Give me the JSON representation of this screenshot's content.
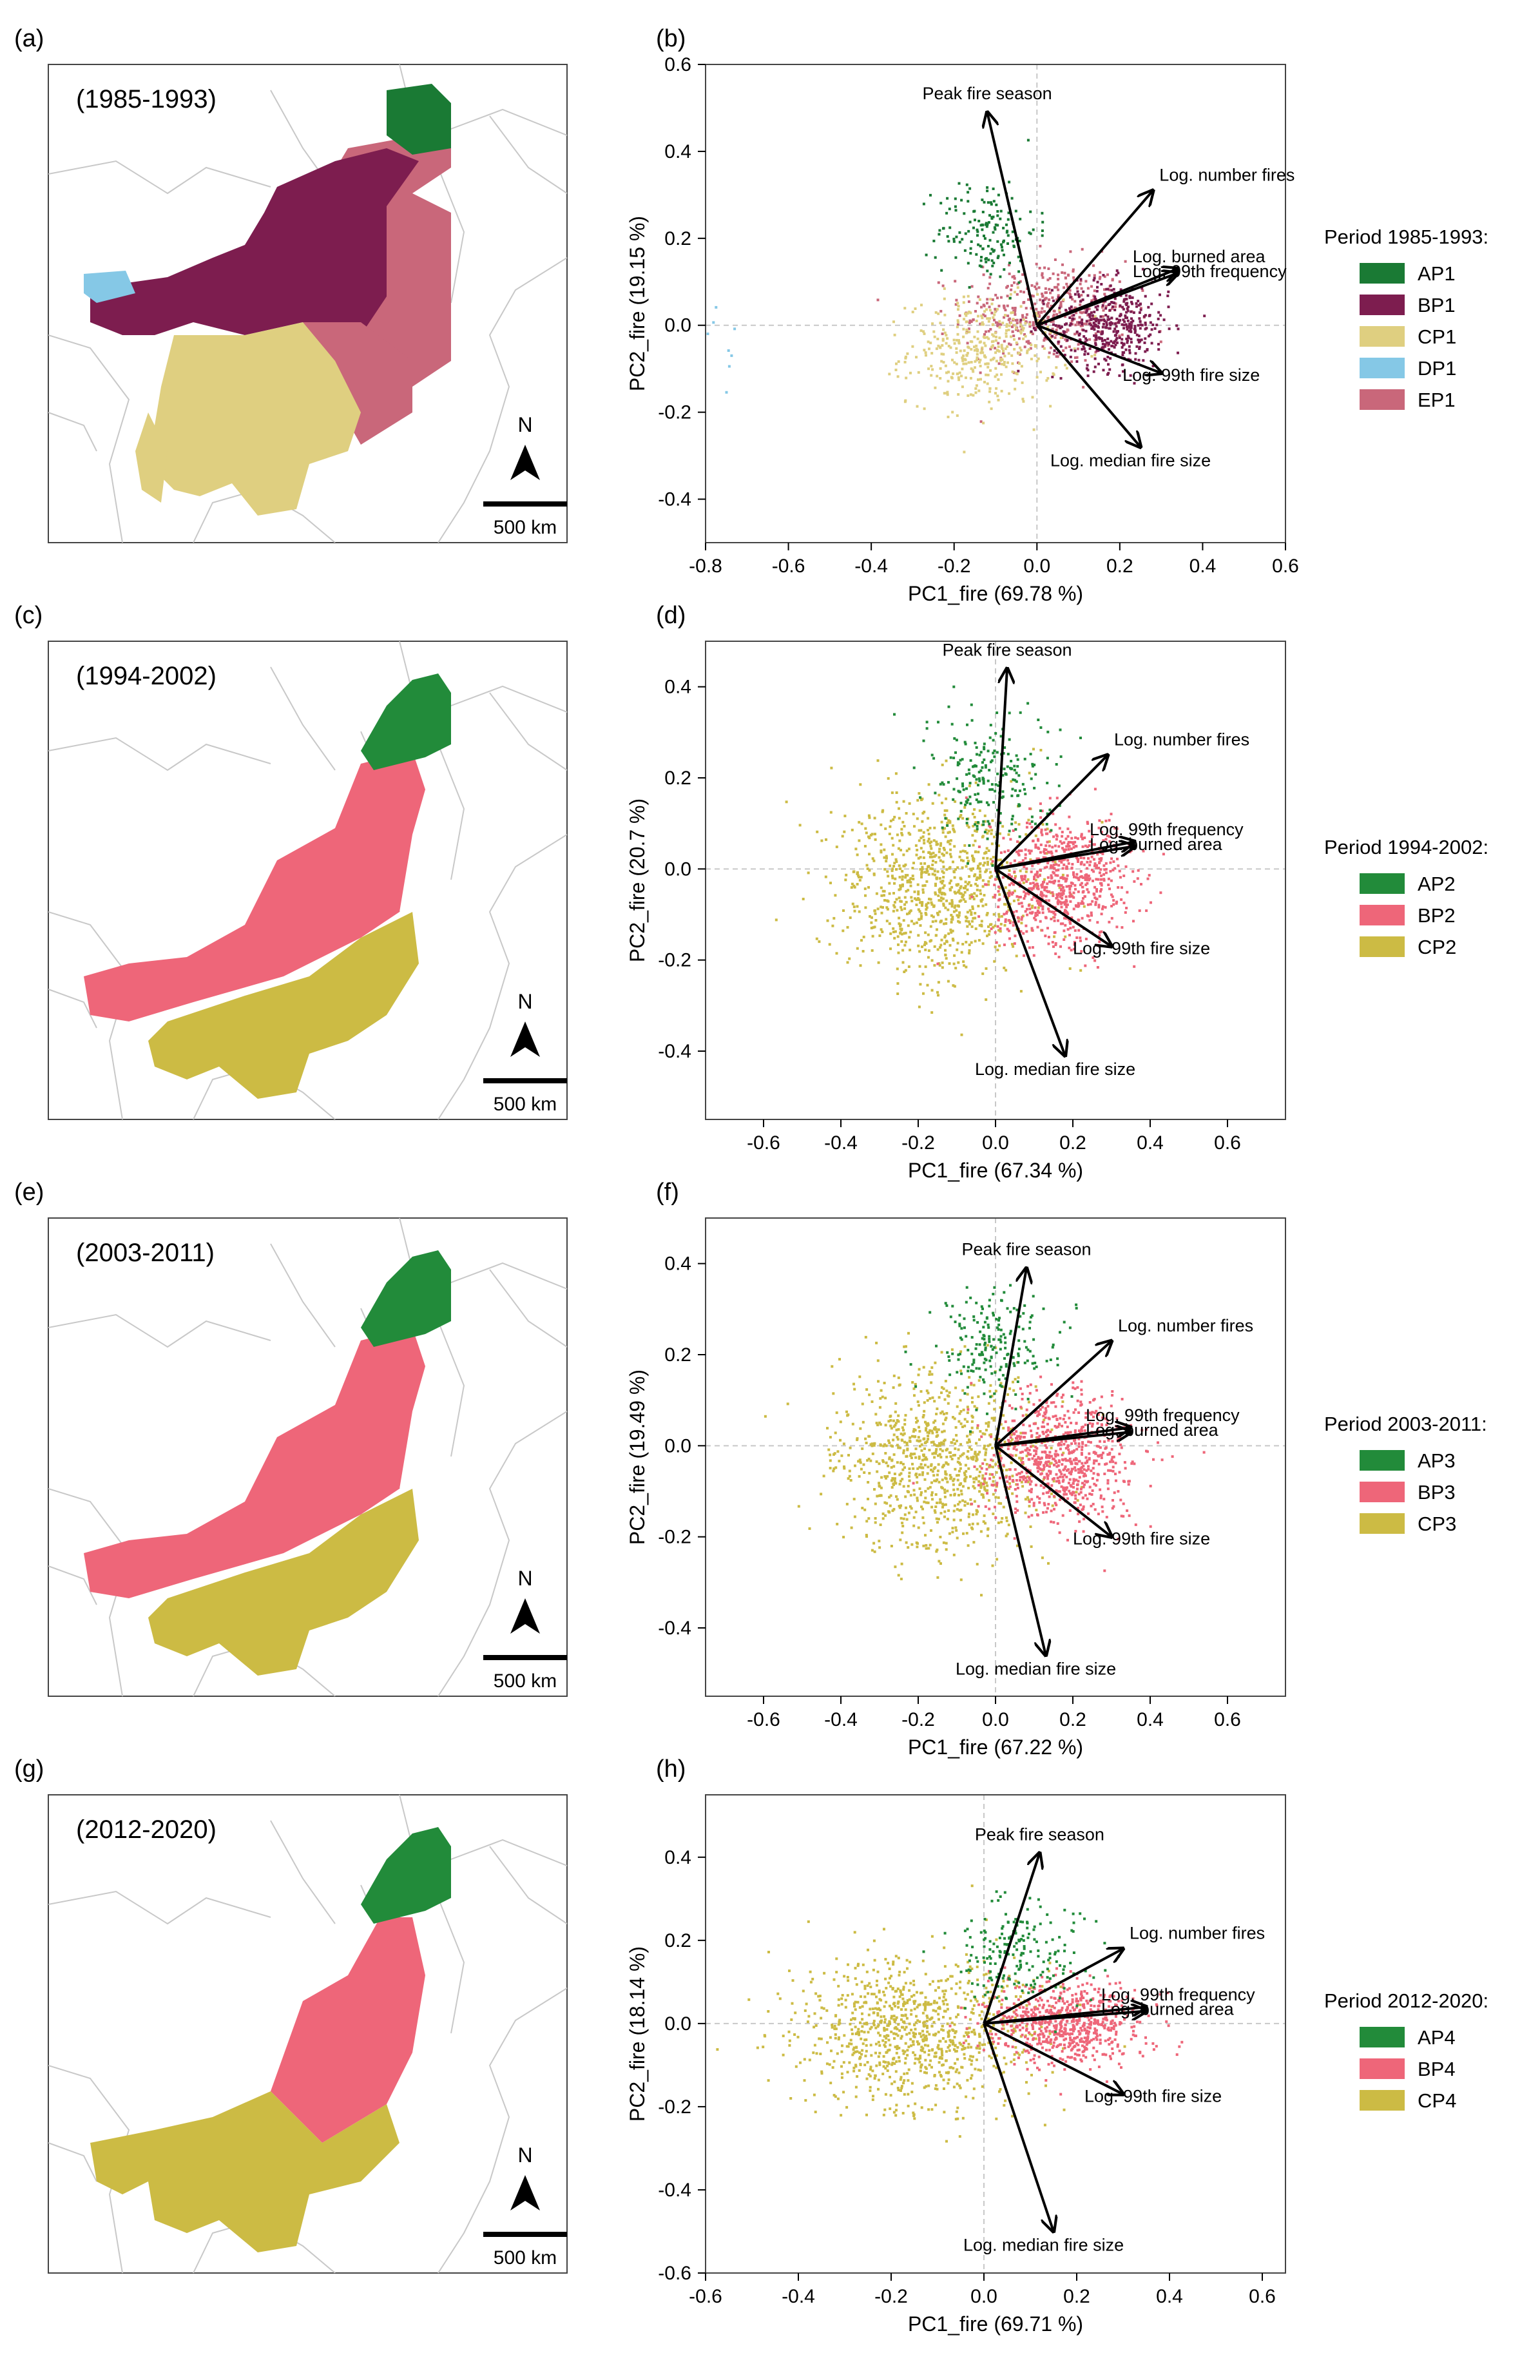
{
  "panels": [
    {
      "map_label": "(a)",
      "pca_label": "(b)",
      "period": "(1985-1993)",
      "legend_title": "Period 1985-1993:",
      "scale_label": "500 km",
      "north_label": "N"
    },
    {
      "map_label": "(c)",
      "pca_label": "(d)",
      "period": "(1994-2002)",
      "legend_title": "Period 1994-2002:",
      "scale_label": "500 km",
      "north_label": "N"
    },
    {
      "map_label": "(e)",
      "pca_label": "(f)",
      "period": "(2003-2011)",
      "legend_title": "Period 2003-2011:",
      "scale_label": "500 km",
      "north_label": "N"
    },
    {
      "map_label": "(g)",
      "pca_label": "(h)",
      "period": "(2012-2020)",
      "legend_title": "Period 2012-2020:",
      "scale_label": "500 km",
      "north_label": "N"
    }
  ],
  "colors": {
    "AP": "#1a7a34",
    "BP1": "#7d1d4f",
    "CP1": "#dfcf80",
    "DP1": "#85c8e6",
    "EP1": "#c9677a",
    "AP_late": "#228b3a",
    "BP_late": "#ee6679",
    "CP_late": "#ccbb44"
  },
  "chart_data": [
    {
      "type": "scatter",
      "xlabel": "PC1_fire (69.78 %)",
      "ylabel": "PC2_fire (19.15 %)",
      "xlim": [
        -0.8,
        0.6
      ],
      "ylim": [
        -0.5,
        0.6
      ],
      "xticks": [
        -0.8,
        -0.6,
        -0.4,
        -0.2,
        0.0,
        0.2,
        0.4,
        0.6
      ],
      "yticks": [
        -0.4,
        -0.2,
        0.0,
        0.2,
        0.4,
        0.6
      ],
      "legend": [
        {
          "name": "AP1",
          "color": "#1a7a34"
        },
        {
          "name": "BP1",
          "color": "#7d1d4f"
        },
        {
          "name": "CP1",
          "color": "#dfcf80"
        },
        {
          "name": "DP1",
          "color": "#85c8e6"
        },
        {
          "name": "EP1",
          "color": "#c9677a"
        }
      ],
      "clusters": [
        {
          "name": "EP1",
          "n": 420,
          "cx": 0.02,
          "cy": 0.03,
          "sx": 0.1,
          "sy": 0.06,
          "color": "#c9677a"
        },
        {
          "name": "CP1",
          "n": 380,
          "cx": -0.13,
          "cy": -0.06,
          "sx": 0.09,
          "sy": 0.06,
          "color": "#dfcf80"
        },
        {
          "name": "AP1",
          "n": 160,
          "cx": -0.12,
          "cy": 0.22,
          "sx": 0.06,
          "sy": 0.06,
          "color": "#1a7a34"
        },
        {
          "name": "BP1",
          "n": 420,
          "cx": 0.18,
          "cy": 0.0,
          "sx": 0.07,
          "sy": 0.05,
          "color": "#7d1d4f"
        },
        {
          "name": "DP1",
          "n": 8,
          "cx": -0.75,
          "cy": -0.05,
          "sx": 0.02,
          "sy": 0.05,
          "color": "#85c8e6"
        }
      ],
      "arrows": [
        {
          "label": "Peak fire season",
          "x": -0.12,
          "y": 0.49
        },
        {
          "label": "Log. number fires",
          "x": 0.28,
          "y": 0.31
        },
        {
          "label": "Log. burned area",
          "x": 0.34,
          "y": 0.13
        },
        {
          "label": "Log. 99th frequency",
          "x": 0.34,
          "y": 0.12
        },
        {
          "label": "Log. 99th fire size",
          "x": 0.3,
          "y": -0.11
        },
        {
          "label": "Log. median fire size",
          "x": 0.25,
          "y": -0.28
        }
      ]
    },
    {
      "type": "scatter",
      "xlabel": "PC1_fire (67.34 %)",
      "ylabel": "PC2_fire (20.7 %)",
      "xlim": [
        -0.75,
        0.75
      ],
      "ylim": [
        -0.55,
        0.5
      ],
      "xticks": [
        -0.6,
        -0.4,
        -0.2,
        0.0,
        0.2,
        0.4,
        0.6
      ],
      "yticks": [
        -0.4,
        -0.2,
        0.0,
        0.2,
        0.4
      ],
      "legend": [
        {
          "name": "AP2",
          "color": "#228b3a"
        },
        {
          "name": "BP2",
          "color": "#ee6679"
        },
        {
          "name": "CP2",
          "color": "#ccbb44"
        }
      ],
      "clusters": [
        {
          "name": "CP2",
          "n": 900,
          "cx": -0.15,
          "cy": -0.04,
          "sx": 0.13,
          "sy": 0.1,
          "color": "#ccbb44"
        },
        {
          "name": "BP2",
          "n": 750,
          "cx": 0.17,
          "cy": -0.03,
          "sx": 0.09,
          "sy": 0.07,
          "color": "#ee6679"
        },
        {
          "name": "AP2",
          "n": 220,
          "cx": -0.02,
          "cy": 0.2,
          "sx": 0.08,
          "sy": 0.07,
          "color": "#228b3a"
        }
      ],
      "arrows": [
        {
          "label": "Peak fire season",
          "x": 0.03,
          "y": 0.44
        },
        {
          "label": "Log. number fires",
          "x": 0.29,
          "y": 0.25
        },
        {
          "label": "Log. 99th frequency",
          "x": 0.36,
          "y": 0.06
        },
        {
          "label": "Log. burned area",
          "x": 0.36,
          "y": 0.05
        },
        {
          "label": "Log. 99th fire size",
          "x": 0.3,
          "y": -0.17
        },
        {
          "label": "Log. median fire size",
          "x": 0.18,
          "y": -0.41
        }
      ]
    },
    {
      "type": "scatter",
      "xlabel": "PC1_fire (67.22 %)",
      "ylabel": "PC2_fire (19.49 %)",
      "xlim": [
        -0.75,
        0.75
      ],
      "ylim": [
        -0.55,
        0.5
      ],
      "xticks": [
        -0.6,
        -0.4,
        -0.2,
        0.0,
        0.2,
        0.4,
        0.6
      ],
      "yticks": [
        -0.4,
        -0.2,
        0.0,
        0.2,
        0.4
      ],
      "legend": [
        {
          "name": "AP3",
          "color": "#228b3a"
        },
        {
          "name": "BP3",
          "color": "#ee6679"
        },
        {
          "name": "CP3",
          "color": "#ccbb44"
        }
      ],
      "clusters": [
        {
          "name": "CP3",
          "n": 900,
          "cx": -0.15,
          "cy": -0.04,
          "sx": 0.13,
          "sy": 0.1,
          "color": "#ccbb44"
        },
        {
          "name": "BP3",
          "n": 750,
          "cx": 0.17,
          "cy": -0.03,
          "sx": 0.09,
          "sy": 0.07,
          "color": "#ee6679"
        },
        {
          "name": "AP3",
          "n": 200,
          "cx": 0.0,
          "cy": 0.22,
          "sx": 0.08,
          "sy": 0.06,
          "color": "#228b3a"
        }
      ],
      "arrows": [
        {
          "label": "Peak fire season",
          "x": 0.08,
          "y": 0.39
        },
        {
          "label": "Log. number fires",
          "x": 0.3,
          "y": 0.23
        },
        {
          "label": "Log. 99th frequency",
          "x": 0.35,
          "y": 0.04
        },
        {
          "label": "Log. burned area",
          "x": 0.35,
          "y": 0.03
        },
        {
          "label": "Log. 99th fire size",
          "x": 0.3,
          "y": -0.2
        },
        {
          "label": "Log. median fire size",
          "x": 0.13,
          "y": -0.46
        }
      ]
    },
    {
      "type": "scatter",
      "xlabel": "PC1_fire (69.71 %)",
      "ylabel": "PC2_fire (18.14 %)",
      "xlim": [
        -0.6,
        0.65
      ],
      "ylim": [
        -0.6,
        0.55
      ],
      "xticks": [
        -0.6,
        -0.4,
        -0.2,
        0.0,
        0.2,
        0.4,
        0.6
      ],
      "yticks": [
        -0.6,
        -0.4,
        -0.2,
        0.0,
        0.2,
        0.4
      ],
      "legend": [
        {
          "name": "AP4",
          "color": "#228b3a"
        },
        {
          "name": "BP4",
          "color": "#ee6679"
        },
        {
          "name": "CP4",
          "color": "#ccbb44"
        }
      ],
      "clusters": [
        {
          "name": "CP4",
          "n": 950,
          "cx": -0.15,
          "cy": -0.02,
          "sx": 0.13,
          "sy": 0.09,
          "color": "#ccbb44"
        },
        {
          "name": "BP4",
          "n": 700,
          "cx": 0.18,
          "cy": 0.0,
          "sx": 0.08,
          "sy": 0.05,
          "color": "#ee6679"
        },
        {
          "name": "AP4",
          "n": 200,
          "cx": 0.07,
          "cy": 0.17,
          "sx": 0.07,
          "sy": 0.06,
          "color": "#228b3a"
        }
      ],
      "arrows": [
        {
          "label": "Peak fire season",
          "x": 0.12,
          "y": 0.41
        },
        {
          "label": "Log. number fires",
          "x": 0.3,
          "y": 0.18
        },
        {
          "label": "Log. 99th frequency",
          "x": 0.35,
          "y": 0.04
        },
        {
          "label": "Log. burned area",
          "x": 0.35,
          "y": 0.03
        },
        {
          "label": "Log. 99th fire size",
          "x": 0.3,
          "y": -0.17
        },
        {
          "label": "Log. median fire size",
          "x": 0.15,
          "y": -0.5
        }
      ]
    }
  ]
}
